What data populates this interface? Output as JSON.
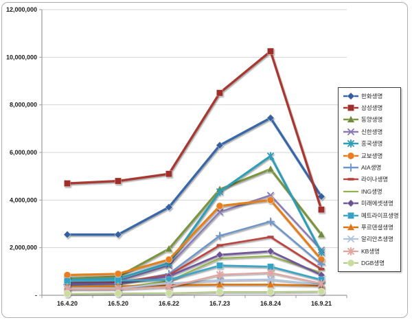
{
  "chart_data": {
    "type": "line",
    "title": "",
    "xlabel": "",
    "ylabel": "",
    "x_categories": [
      "16.4.20",
      "16.5.20",
      "16.6.22",
      "16.7.23",
      "16.8.24",
      "16.9.21"
    ],
    "y_axis": {
      "min": 0,
      "max": 12000000,
      "step": 2000000,
      "tick_labels_top_to_bottom": [
        "12,000,000",
        "10,000,000",
        "8,000,000",
        "6,000,000",
        "4,000,000",
        "2,000,000",
        "-"
      ]
    },
    "grid": true,
    "legend_position": "right",
    "series": [
      {
        "id": "hanwha",
        "name": "한화생명",
        "color": "#3968A8",
        "marker": "diamond",
        "marker_fill": "#355E9D",
        "line_width": 3.4,
        "values": [
          2550000,
          2550000,
          3700000,
          6300000,
          7450000,
          4150000
        ]
      },
      {
        "id": "samsung",
        "name": "삼성생명",
        "color": "#A83833",
        "marker": "square",
        "marker_fill": "#9E2F2A",
        "line_width": 3.4,
        "values": [
          4700000,
          4800000,
          5100000,
          8500000,
          10250000,
          3600000
        ]
      },
      {
        "id": "dongyang",
        "name": "동양생명",
        "color": "#7A9440",
        "marker": "triangle",
        "marker_fill": "#71893B",
        "line_width": 3.2,
        "values": [
          700000,
          780000,
          1950000,
          4450000,
          5300000,
          2550000
        ]
      },
      {
        "id": "shinhan",
        "name": "신한생명",
        "color": "#8A7BB5",
        "marker": "x",
        "marker_fill": "#8273AE",
        "line_width": 2.6,
        "values": [
          550000,
          600000,
          1250000,
          3500000,
          4200000,
          1900000
        ]
      },
      {
        "id": "heungkuk",
        "name": "흥국생명",
        "color": "#2F9DB5",
        "marker": "asterisk",
        "marker_fill": "#2F9DB5",
        "line_width": 3.2,
        "values": [
          650000,
          700000,
          1350000,
          4350000,
          5850000,
          1800000
        ]
      },
      {
        "id": "kyobo",
        "name": "교보생명",
        "color": "#E1801F",
        "marker": "circle",
        "marker_fill": "#E87E24",
        "line_width": 3.2,
        "values": [
          850000,
          900000,
          1500000,
          3750000,
          4000000,
          1500000
        ]
      },
      {
        "id": "aia",
        "name": "AIA생명",
        "color": "#6E96C8",
        "marker": "plus",
        "marker_fill": "#6E96C8",
        "line_width": 2.6,
        "values": [
          450000,
          500000,
          900000,
          2500000,
          3100000,
          1300000
        ]
      },
      {
        "id": "lina",
        "name": "라이나생명",
        "color": "#BC4743",
        "marker": "dash",
        "marker_fill": "#B3423E",
        "line_width": 2.8,
        "values": [
          500000,
          550000,
          850000,
          2100000,
          2450000,
          1100000
        ]
      },
      {
        "id": "ing",
        "name": "ING생명",
        "color": "#94B050",
        "marker": "none",
        "marker_fill": "#94B050",
        "line_width": 2.2,
        "values": [
          300000,
          320000,
          600000,
          1550000,
          1650000,
          950000
        ]
      },
      {
        "id": "miraeasset",
        "name": "미래에셋생명",
        "color": "#70589B",
        "marker": "diamond",
        "marker_fill": "#6A5295",
        "line_width": 2.8,
        "values": [
          480000,
          500000,
          800000,
          1700000,
          1850000,
          850000
        ]
      },
      {
        "id": "metlife",
        "name": "메트라이프생명",
        "color": "#3FA5C4",
        "marker": "square",
        "marker_fill": "#35A2C4",
        "line_width": 2.8,
        "values": [
          600000,
          620000,
          650000,
          1250000,
          1200000,
          650000
        ]
      },
      {
        "id": "prudential",
        "name": "푸르덴셜생명",
        "color": "#D9730F",
        "marker": "triangle",
        "marker_fill": "#DE7817",
        "line_width": 2.6,
        "values": [
          350000,
          380000,
          420000,
          450000,
          450000,
          400000
        ]
      },
      {
        "id": "allianz",
        "name": "알리안츠생명",
        "color": "#AFC4E2",
        "marker": "x",
        "marker_fill": "#AFC4E2",
        "line_width": 2.2,
        "values": [
          300000,
          300000,
          500000,
          640000,
          670000,
          450000
        ]
      },
      {
        "id": "kb",
        "name": "KB생명",
        "color": "#E2A49E",
        "marker": "asterisk",
        "marker_fill": "#E2A49E",
        "line_width": 2.2,
        "values": [
          250000,
          260000,
          350000,
          870000,
          950000,
          500000
        ]
      },
      {
        "id": "dgb",
        "name": "DGB생명",
        "color": "#B5C98A",
        "marker": "circle",
        "marker_fill": "#CBDCA0",
        "line_width": 2.2,
        "values": [
          60000,
          80000,
          90000,
          140000,
          140000,
          160000
        ]
      }
    ],
    "plot_colors": {
      "gridline": "#d4d4d4",
      "axis": "#9a9a9a",
      "background": "#ffffff"
    }
  }
}
